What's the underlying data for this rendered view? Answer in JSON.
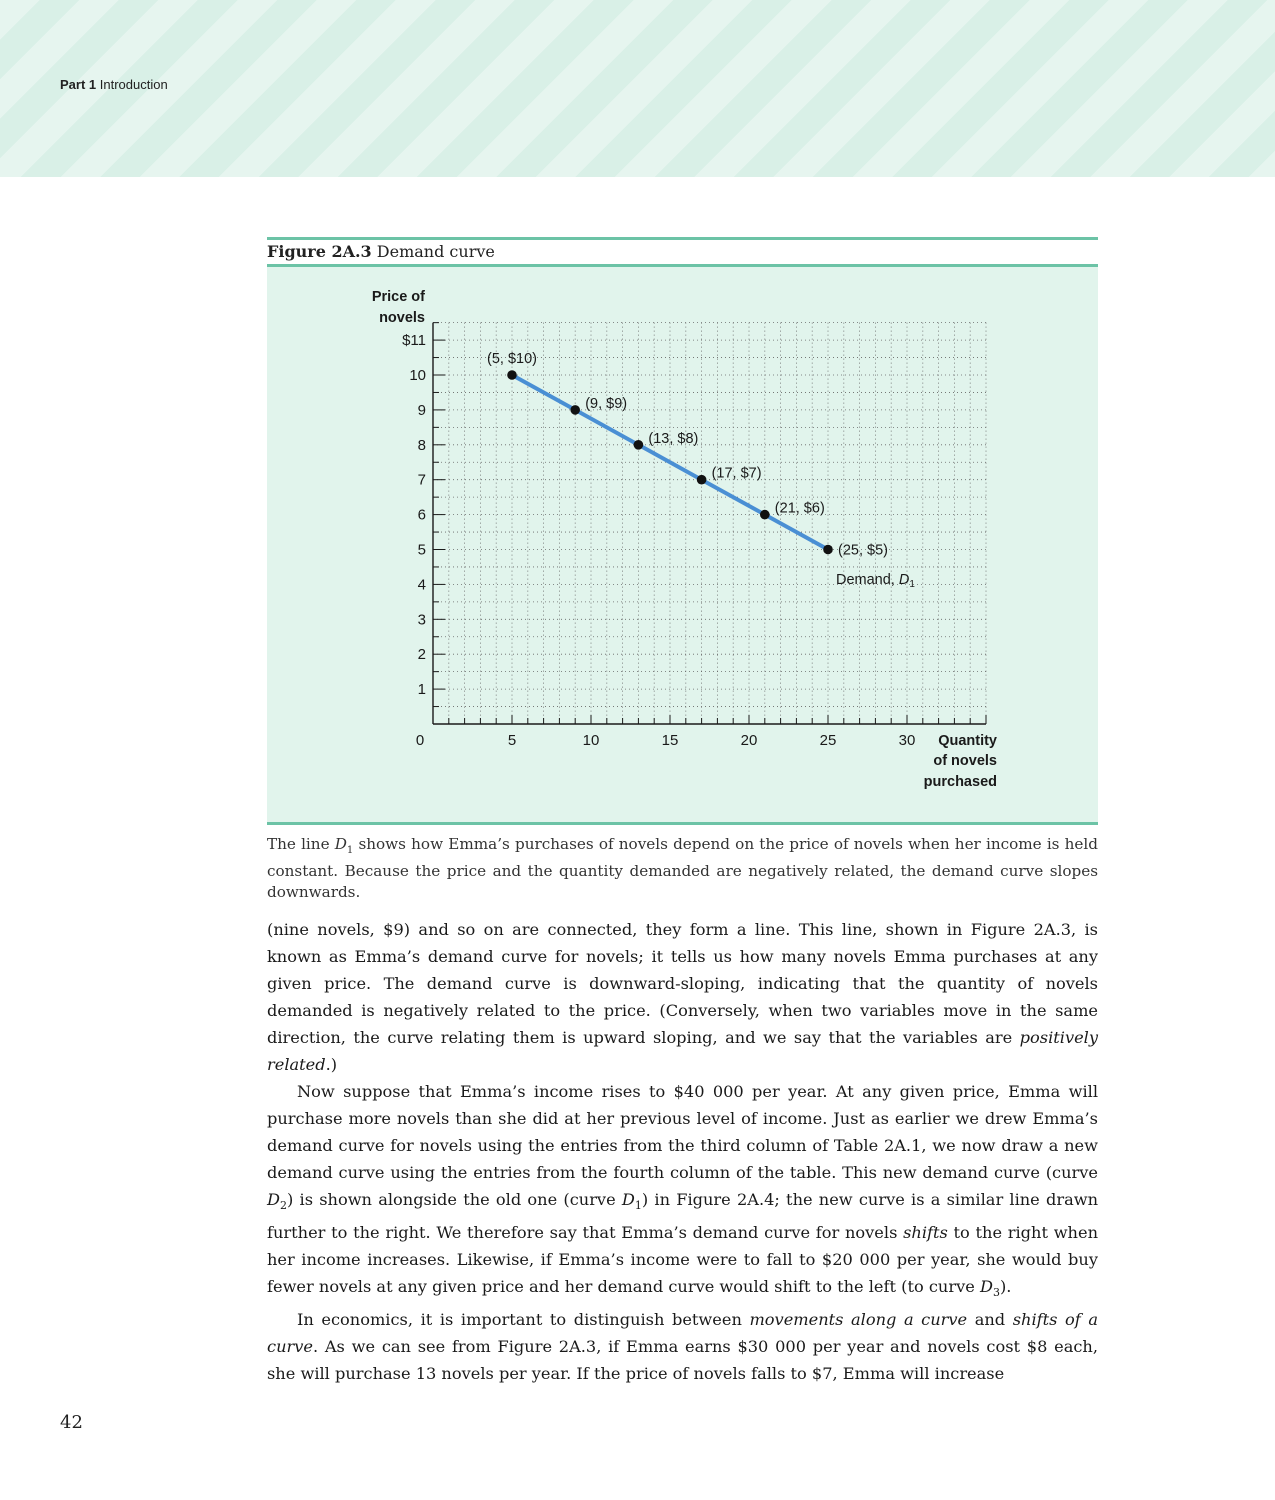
{
  "header": {
    "part_label": "Part 1",
    "section_label": "Introduction"
  },
  "figure": {
    "number": "Figure 2A.3",
    "title": "Demand curve",
    "note_parts": [
      "The line ",
      "D",
      "1",
      " shows how Emma’s purchases of novels depend on the price of novels when her income is held constant. Because the price and the quantity demanded are negatively related, the demand curve slopes downwards."
    ]
  },
  "chart_data": {
    "type": "line",
    "ylabel_lines": [
      "Price of",
      "novels"
    ],
    "xlabel_lines": [
      "Quantity",
      "of novels",
      "purchased"
    ],
    "origin_label": "0",
    "y_ticks": [
      {
        "value": 11,
        "label": "$11"
      },
      {
        "value": 10,
        "label": "10"
      },
      {
        "value": 9,
        "label": "9"
      },
      {
        "value": 8,
        "label": "8"
      },
      {
        "value": 7,
        "label": "7"
      },
      {
        "value": 6,
        "label": "6"
      },
      {
        "value": 5,
        "label": "5"
      },
      {
        "value": 4,
        "label": "4"
      },
      {
        "value": 3,
        "label": "3"
      },
      {
        "value": 2,
        "label": "2"
      },
      {
        "value": 1,
        "label": "1"
      }
    ],
    "x_ticks": [
      {
        "value": 5,
        "label": "5"
      },
      {
        "value": 10,
        "label": "10"
      },
      {
        "value": 15,
        "label": "15"
      },
      {
        "value": 20,
        "label": "20"
      },
      {
        "value": 25,
        "label": "25"
      },
      {
        "value": 30,
        "label": "30"
      }
    ],
    "xlim": [
      0,
      35
    ],
    "ylim": [
      0,
      12
    ],
    "grid": true,
    "line_color": "#4a8fd4",
    "series": [
      {
        "points": [
          {
            "x": 5,
            "y": 10,
            "label": "(5, $10)"
          },
          {
            "x": 9,
            "y": 9,
            "label": "(9, $9)"
          },
          {
            "x": 13,
            "y": 8,
            "label": "(13, $8)"
          },
          {
            "x": 17,
            "y": 7,
            "label": "(17, $7)"
          },
          {
            "x": 21,
            "y": 6,
            "label": "(21, $6)"
          },
          {
            "x": 25,
            "y": 5,
            "label": "(25, $5)"
          }
        ]
      }
    ],
    "curve_label": {
      "text": "Demand, ",
      "italic": "D",
      "sub": "1"
    }
  },
  "body": {
    "p1": {
      "a": "(nine novels, $9) and so on  are connected, they form a line. This line, shown in Figure 2A.3, is known as Emma’s demand curve for novels; it tells us how many novels Emma purchases at any given price. The demand curve is downward-sloping, indicating that the quantity of novels demanded is negatively related to the price. (Conversely, when two variables move in the same direction, the curve relating them is upward sloping, and we say that the variables are ",
      "em1": "positively related",
      "b": ".)"
    },
    "p2": {
      "a": "Now suppose that Emma’s income rises to $40 000 per year. At any given price, Emma will purchase more novels than she did at her previous level of income. Just as earlier we drew Emma’s demand curve for novels using the entries from the third column of Table 2A.1, we now draw a new demand curve using the entries from the fourth column of the table. This new demand curve (curve ",
      "d2": "D",
      "d2sub": "2",
      "b": ") is shown alongside the old one (curve ",
      "d1": "D",
      "d1sub": "1",
      "c": ") in Figure 2A.4; the new curve is a similar line drawn further to the right. We therefore say that Emma’s demand curve for novels ",
      "em": "shifts",
      "d": " to the right when her income increases. Likewise, if Emma’s income were to fall to $20 000 per year, she would buy fewer novels at any given price and her demand curve would shift to the left (to curve ",
      "d3": "D",
      "d3sub": "3",
      "e": ")."
    },
    "p3": {
      "a": "In economics, it is important to distinguish between ",
      "em1": "movements along a curve",
      "b": " and ",
      "em2": "shifts of a curve",
      "c": ". As we can see from Figure 2A.3, if Emma earns $30 000 per year and novels cost $8 each, she will purchase 13 novels per year. If the price of novels falls to $7, Emma will increase"
    }
  },
  "page_number": "42"
}
